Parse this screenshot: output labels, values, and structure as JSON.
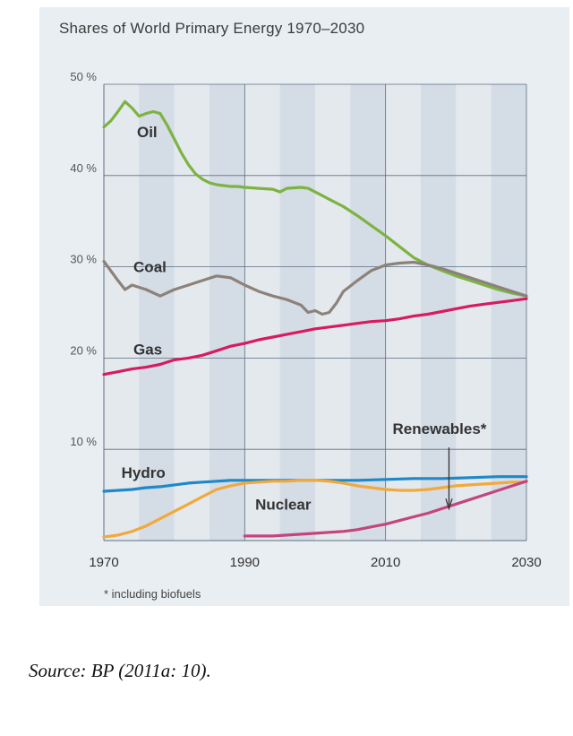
{
  "chart_data": {
    "type": "line",
    "title": "Shares of World Primary Energy 1970–2030",
    "xlabel": "",
    "ylabel": "",
    "xlim": [
      1970,
      2030
    ],
    "ylim": [
      0,
      50
    ],
    "x_ticks": [
      "1970",
      "1990",
      "2010",
      "2030"
    ],
    "x_tick_values": [
      1970,
      1990,
      2010,
      2030
    ],
    "y_ticks": [
      "10 %",
      "20 %",
      "30 %",
      "40 %",
      "50 %"
    ],
    "y_tick_values": [
      10,
      20,
      30,
      40,
      50
    ],
    "series": [
      {
        "name": "Oil",
        "color": "#7cb342",
        "x": [
          1970,
          1971,
          1972,
          1973,
          1974,
          1975,
          1976,
          1977,
          1978,
          1979,
          1980,
          1981,
          1982,
          1983,
          1984,
          1985,
          1986,
          1987,
          1988,
          1989,
          1990,
          1992,
          1994,
          1995,
          1996,
          1998,
          1999,
          2000,
          2001,
          2002,
          2004,
          2006,
          2008,
          2010,
          2012,
          2014,
          2016,
          2018,
          2020,
          2022,
          2024,
          2026,
          2028,
          2030
        ],
        "values": [
          45.3,
          46.0,
          47.0,
          48.1,
          47.4,
          46.5,
          46.8,
          47.0,
          46.8,
          45.5,
          44.0,
          42.5,
          41.2,
          40.2,
          39.6,
          39.2,
          39.0,
          38.9,
          38.8,
          38.8,
          38.7,
          38.6,
          38.5,
          38.2,
          38.6,
          38.7,
          38.6,
          38.2,
          37.8,
          37.4,
          36.6,
          35.6,
          34.5,
          33.4,
          32.2,
          31.0,
          30.2,
          29.6,
          29.0,
          28.5,
          28.0,
          27.5,
          27.1,
          26.8
        ]
      },
      {
        "name": "Coal",
        "color": "#8c8279",
        "x": [
          1970,
          1972,
          1973,
          1974,
          1976,
          1978,
          1980,
          1982,
          1984,
          1986,
          1988,
          1990,
          1992,
          1994,
          1996,
          1998,
          1999,
          2000,
          2001,
          2002,
          2003,
          2004,
          2006,
          2008,
          2010,
          2012,
          2014,
          2016,
          2018,
          2020,
          2022,
          2024,
          2026,
          2028,
          2030
        ],
        "values": [
          30.6,
          28.5,
          27.5,
          28.0,
          27.5,
          26.8,
          27.5,
          28.0,
          28.5,
          29.0,
          28.8,
          28.0,
          27.3,
          26.8,
          26.4,
          25.8,
          25.0,
          25.2,
          24.8,
          25.0,
          26.0,
          27.3,
          28.5,
          29.6,
          30.2,
          30.4,
          30.5,
          30.2,
          29.8,
          29.3,
          28.8,
          28.3,
          27.8,
          27.3,
          26.8
        ]
      },
      {
        "name": "Gas",
        "color": "#d81b60",
        "x": [
          1970,
          1972,
          1974,
          1976,
          1978,
          1980,
          1982,
          1984,
          1986,
          1988,
          1990,
          1992,
          1994,
          1996,
          1998,
          2000,
          2002,
          2004,
          2006,
          2008,
          2010,
          2012,
          2014,
          2016,
          2018,
          2020,
          2022,
          2024,
          2026,
          2028,
          2030
        ],
        "values": [
          18.2,
          18.5,
          18.8,
          19.0,
          19.3,
          19.8,
          20.0,
          20.3,
          20.8,
          21.3,
          21.6,
          22.0,
          22.3,
          22.6,
          22.9,
          23.2,
          23.4,
          23.6,
          23.8,
          24.0,
          24.1,
          24.3,
          24.6,
          24.8,
          25.1,
          25.4,
          25.7,
          25.9,
          26.1,
          26.3,
          26.5
        ]
      },
      {
        "name": "Hydro",
        "color": "#1e88c8",
        "x": [
          1970,
          1972,
          1974,
          1976,
          1978,
          1980,
          1982,
          1984,
          1986,
          1988,
          1990,
          1994,
          1998,
          2002,
          2006,
          2010,
          2014,
          2018,
          2022,
          2026,
          2030
        ],
        "values": [
          5.4,
          5.5,
          5.6,
          5.8,
          5.9,
          6.1,
          6.3,
          6.4,
          6.5,
          6.6,
          6.6,
          6.6,
          6.6,
          6.6,
          6.6,
          6.7,
          6.8,
          6.8,
          6.9,
          7.0,
          7.0
        ]
      },
      {
        "name": "Nuclear",
        "color": "#f2a93b",
        "x": [
          1970,
          1972,
          1974,
          1976,
          1978,
          1980,
          1982,
          1984,
          1986,
          1988,
          1990,
          1992,
          1994,
          1996,
          1998,
          2000,
          2002,
          2004,
          2006,
          2008,
          2010,
          2012,
          2014,
          2016,
          2018,
          2020,
          2022,
          2024,
          2026,
          2028,
          2030
        ],
        "values": [
          0.4,
          0.6,
          1.0,
          1.6,
          2.4,
          3.2,
          4.0,
          4.8,
          5.6,
          6.0,
          6.3,
          6.4,
          6.5,
          6.5,
          6.6,
          6.6,
          6.5,
          6.3,
          6.0,
          5.8,
          5.6,
          5.5,
          5.5,
          5.6,
          5.8,
          6.0,
          6.1,
          6.2,
          6.3,
          6.4,
          6.4
        ]
      },
      {
        "name": "Renewables*",
        "color": "#c4457e",
        "x": [
          1990,
          1992,
          1994,
          1996,
          1998,
          2000,
          2002,
          2004,
          2006,
          2008,
          2010,
          2012,
          2014,
          2016,
          2018,
          2020,
          2022,
          2024,
          2026,
          2028,
          2030
        ],
        "values": [
          0.5,
          0.5,
          0.5,
          0.6,
          0.7,
          0.8,
          0.9,
          1.0,
          1.2,
          1.5,
          1.8,
          2.2,
          2.6,
          3.0,
          3.5,
          4.0,
          4.5,
          5.0,
          5.5,
          6.0,
          6.5
        ]
      }
    ],
    "annotations": [
      {
        "text": "Renewables*",
        "points_to_series": "Renewables*",
        "at_x": 2019
      },
      {
        "text": "* including biofuels",
        "role": "footnote"
      }
    ]
  },
  "source": "Source: BP (2011a: 10)."
}
